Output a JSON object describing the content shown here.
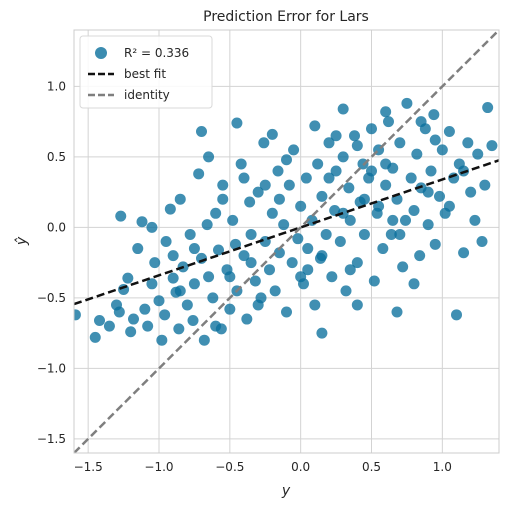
{
  "chart_data": {
    "type": "scatter",
    "title": "Prediction Error for Lars",
    "xlabel": "y",
    "ylabel": "ŷ",
    "xlim": [
      -1.6,
      1.4
    ],
    "ylim": [
      -1.6,
      1.4
    ],
    "xticks": [
      -1.5,
      -1.0,
      -0.5,
      0.0,
      0.5,
      1.0
    ],
    "xtick_labels": [
      "−1.5",
      "−1.0",
      "−0.5",
      "0.0",
      "0.5",
      "1.0"
    ],
    "yticks": [
      -1.5,
      -1.0,
      -0.5,
      0.0,
      0.5,
      1.0
    ],
    "ytick_labels": [
      "−1.5",
      "−1.0",
      "−0.5",
      "0.0",
      "0.5",
      "1.0"
    ],
    "grid": true,
    "legend_position": "top-left",
    "colors": {
      "points": "#0a6f9c",
      "best_fit": "#111111",
      "identity": "#7f7f7f",
      "grid": "#d3d3d3",
      "frame": "#cccccc"
    },
    "legend": [
      {
        "kind": "points",
        "label": "R² = 0.336"
      },
      {
        "kind": "best_fit",
        "label": "best fit"
      },
      {
        "kind": "identity",
        "label": "identity"
      }
    ],
    "best_fit": {
      "slope": 0.34,
      "intercept": 0.0
    },
    "identity": {
      "slope": 1.0,
      "intercept": 0.0
    },
    "series": [
      {
        "name": "R² = 0.336",
        "points": [
          [
            -1.59,
            -0.62
          ],
          [
            -1.45,
            -0.78
          ],
          [
            -1.42,
            -0.66
          ],
          [
            -1.35,
            -0.7
          ],
          [
            -1.3,
            -0.55
          ],
          [
            -1.28,
            -0.6
          ],
          [
            -1.27,
            0.08
          ],
          [
            -1.25,
            -0.44
          ],
          [
            -1.22,
            -0.36
          ],
          [
            -1.2,
            -0.74
          ],
          [
            -1.18,
            -0.65
          ],
          [
            -1.15,
            -0.15
          ],
          [
            -1.12,
            0.04
          ],
          [
            -1.1,
            -0.58
          ],
          [
            -1.08,
            -0.7
          ],
          [
            -1.05,
            -0.4
          ],
          [
            -1.03,
            -0.25
          ],
          [
            -1.0,
            -0.52
          ],
          [
            -0.98,
            -0.8
          ],
          [
            -0.96,
            -0.62
          ],
          [
            -0.95,
            -0.1
          ],
          [
            -0.92,
            0.13
          ],
          [
            -0.9,
            -0.36
          ],
          [
            -0.88,
            -0.46
          ],
          [
            -0.86,
            -0.72
          ],
          [
            -0.85,
            0.2
          ],
          [
            -0.83,
            -0.28
          ],
          [
            -0.8,
            -0.55
          ],
          [
            -0.78,
            -0.05
          ],
          [
            -0.76,
            -0.66
          ],
          [
            -0.75,
            -0.4
          ],
          [
            -0.72,
            0.38
          ],
          [
            -0.7,
            -0.22
          ],
          [
            -0.68,
            -0.8
          ],
          [
            -0.66,
            0.02
          ],
          [
            -0.65,
            -0.35
          ],
          [
            -0.62,
            -0.5
          ],
          [
            -0.6,
            0.1
          ],
          [
            -0.58,
            -0.16
          ],
          [
            -0.56,
            -0.72
          ],
          [
            -0.55,
            0.3
          ],
          [
            -0.52,
            -0.3
          ],
          [
            -0.5,
            -0.58
          ],
          [
            -0.48,
            0.05
          ],
          [
            -0.46,
            -0.12
          ],
          [
            -0.45,
            -0.45
          ],
          [
            -0.42,
            0.45
          ],
          [
            -0.4,
            -0.2
          ],
          [
            -0.38,
            -0.65
          ],
          [
            -0.36,
            0.18
          ],
          [
            -0.35,
            -0.05
          ],
          [
            -0.32,
            -0.38
          ],
          [
            -0.3,
            0.25
          ],
          [
            -0.28,
            -0.5
          ],
          [
            -0.26,
            0.6
          ],
          [
            -0.25,
            -0.1
          ],
          [
            -0.22,
            -0.3
          ],
          [
            -0.2,
            0.1
          ],
          [
            -0.18,
            -0.45
          ],
          [
            -0.16,
            0.4
          ],
          [
            -0.15,
            -0.18
          ],
          [
            -0.12,
            0.02
          ],
          [
            -0.1,
            -0.6
          ],
          [
            -0.08,
            0.3
          ],
          [
            -0.06,
            -0.25
          ],
          [
            -0.05,
            0.55
          ],
          [
            -0.02,
            -0.08
          ],
          [
            0.0,
            0.15
          ],
          [
            0.02,
            -0.4
          ],
          [
            0.04,
            0.35
          ],
          [
            0.05,
            -0.15
          ],
          [
            0.08,
            0.05
          ],
          [
            0.1,
            -0.55
          ],
          [
            0.12,
            0.45
          ],
          [
            0.14,
            -0.22
          ],
          [
            0.15,
            0.22
          ],
          [
            0.18,
            -0.05
          ],
          [
            0.2,
            0.6
          ],
          [
            0.22,
            -0.35
          ],
          [
            0.24,
            0.12
          ],
          [
            0.25,
            0.4
          ],
          [
            0.28,
            -0.1
          ],
          [
            0.3,
            0.5
          ],
          [
            0.32,
            -0.45
          ],
          [
            0.34,
            0.28
          ],
          [
            0.35,
            0.05
          ],
          [
            0.38,
            0.65
          ],
          [
            0.4,
            -0.25
          ],
          [
            0.42,
            0.18
          ],
          [
            0.44,
            0.45
          ],
          [
            0.45,
            -0.05
          ],
          [
            0.48,
            0.35
          ],
          [
            0.5,
            0.7
          ],
          [
            0.52,
            -0.38
          ],
          [
            0.54,
            0.1
          ],
          [
            0.55,
            0.55
          ],
          [
            0.58,
            -0.15
          ],
          [
            0.6,
            0.3
          ],
          [
            0.62,
            0.75
          ],
          [
            0.64,
            -0.05
          ],
          [
            0.65,
            0.42
          ],
          [
            0.68,
            0.2
          ],
          [
            0.7,
            0.6
          ],
          [
            0.72,
            -0.28
          ],
          [
            0.74,
            0.05
          ],
          [
            0.75,
            0.88
          ],
          [
            0.78,
            0.35
          ],
          [
            0.8,
            0.12
          ],
          [
            0.82,
            0.52
          ],
          [
            0.84,
            -0.2
          ],
          [
            0.85,
            0.28
          ],
          [
            0.88,
            0.7
          ],
          [
            0.9,
            0.02
          ],
          [
            0.92,
            0.4
          ],
          [
            0.94,
            0.8
          ],
          [
            0.95,
            -0.12
          ],
          [
            0.98,
            0.22
          ],
          [
            1.0,
            0.55
          ],
          [
            1.02,
            0.1
          ],
          [
            1.05,
            0.68
          ],
          [
            1.08,
            0.35
          ],
          [
            1.1,
            -0.62
          ],
          [
            1.12,
            0.45
          ],
          [
            1.15,
            -0.18
          ],
          [
            1.18,
            0.6
          ],
          [
            1.2,
            0.25
          ],
          [
            1.23,
            0.05
          ],
          [
            1.25,
            0.52
          ],
          [
            1.28,
            -0.1
          ],
          [
            1.3,
            0.3
          ],
          [
            1.32,
            0.85
          ],
          [
            1.35,
            0.58
          ],
          [
            -0.7,
            0.68
          ],
          [
            -0.45,
            0.74
          ],
          [
            0.1,
            0.72
          ],
          [
            -0.2,
            0.66
          ],
          [
            0.6,
            0.82
          ],
          [
            0.3,
            0.84
          ],
          [
            0.68,
            -0.6
          ],
          [
            0.15,
            -0.75
          ],
          [
            -0.6,
            -0.7
          ],
          [
            0.8,
            -0.4
          ],
          [
            0.4,
            -0.55
          ],
          [
            -0.3,
            -0.55
          ],
          [
            0.25,
            0.65
          ],
          [
            0.55,
            0.15
          ],
          [
            -0.1,
            0.48
          ],
          [
            0.05,
            -0.3
          ],
          [
            -0.55,
            0.2
          ],
          [
            0.45,
            0.2
          ],
          [
            0.95,
            0.62
          ],
          [
            1.05,
            0.15
          ],
          [
            -0.9,
            -0.2
          ],
          [
            -0.65,
            0.5
          ],
          [
            0.7,
            -0.05
          ],
          [
            0.2,
            0.35
          ],
          [
            0.35,
            -0.3
          ],
          [
            -0.4,
            0.35
          ],
          [
            -0.15,
            0.2
          ],
          [
            0.6,
            0.45
          ],
          [
            -0.75,
            -0.15
          ],
          [
            0.85,
            0.75
          ],
          [
            0.0,
            -0.35
          ],
          [
            0.5,
            0.4
          ],
          [
            -0.35,
            -0.25
          ],
          [
            1.15,
            0.4
          ],
          [
            -1.05,
            0.0
          ],
          [
            0.3,
            0.1
          ],
          [
            -0.25,
            0.3
          ],
          [
            0.65,
            0.05
          ],
          [
            -0.85,
            -0.45
          ],
          [
            0.15,
            -0.2
          ],
          [
            0.9,
            0.25
          ],
          [
            -0.5,
            -0.35
          ],
          [
            0.4,
            0.58
          ]
        ]
      }
    ]
  }
}
